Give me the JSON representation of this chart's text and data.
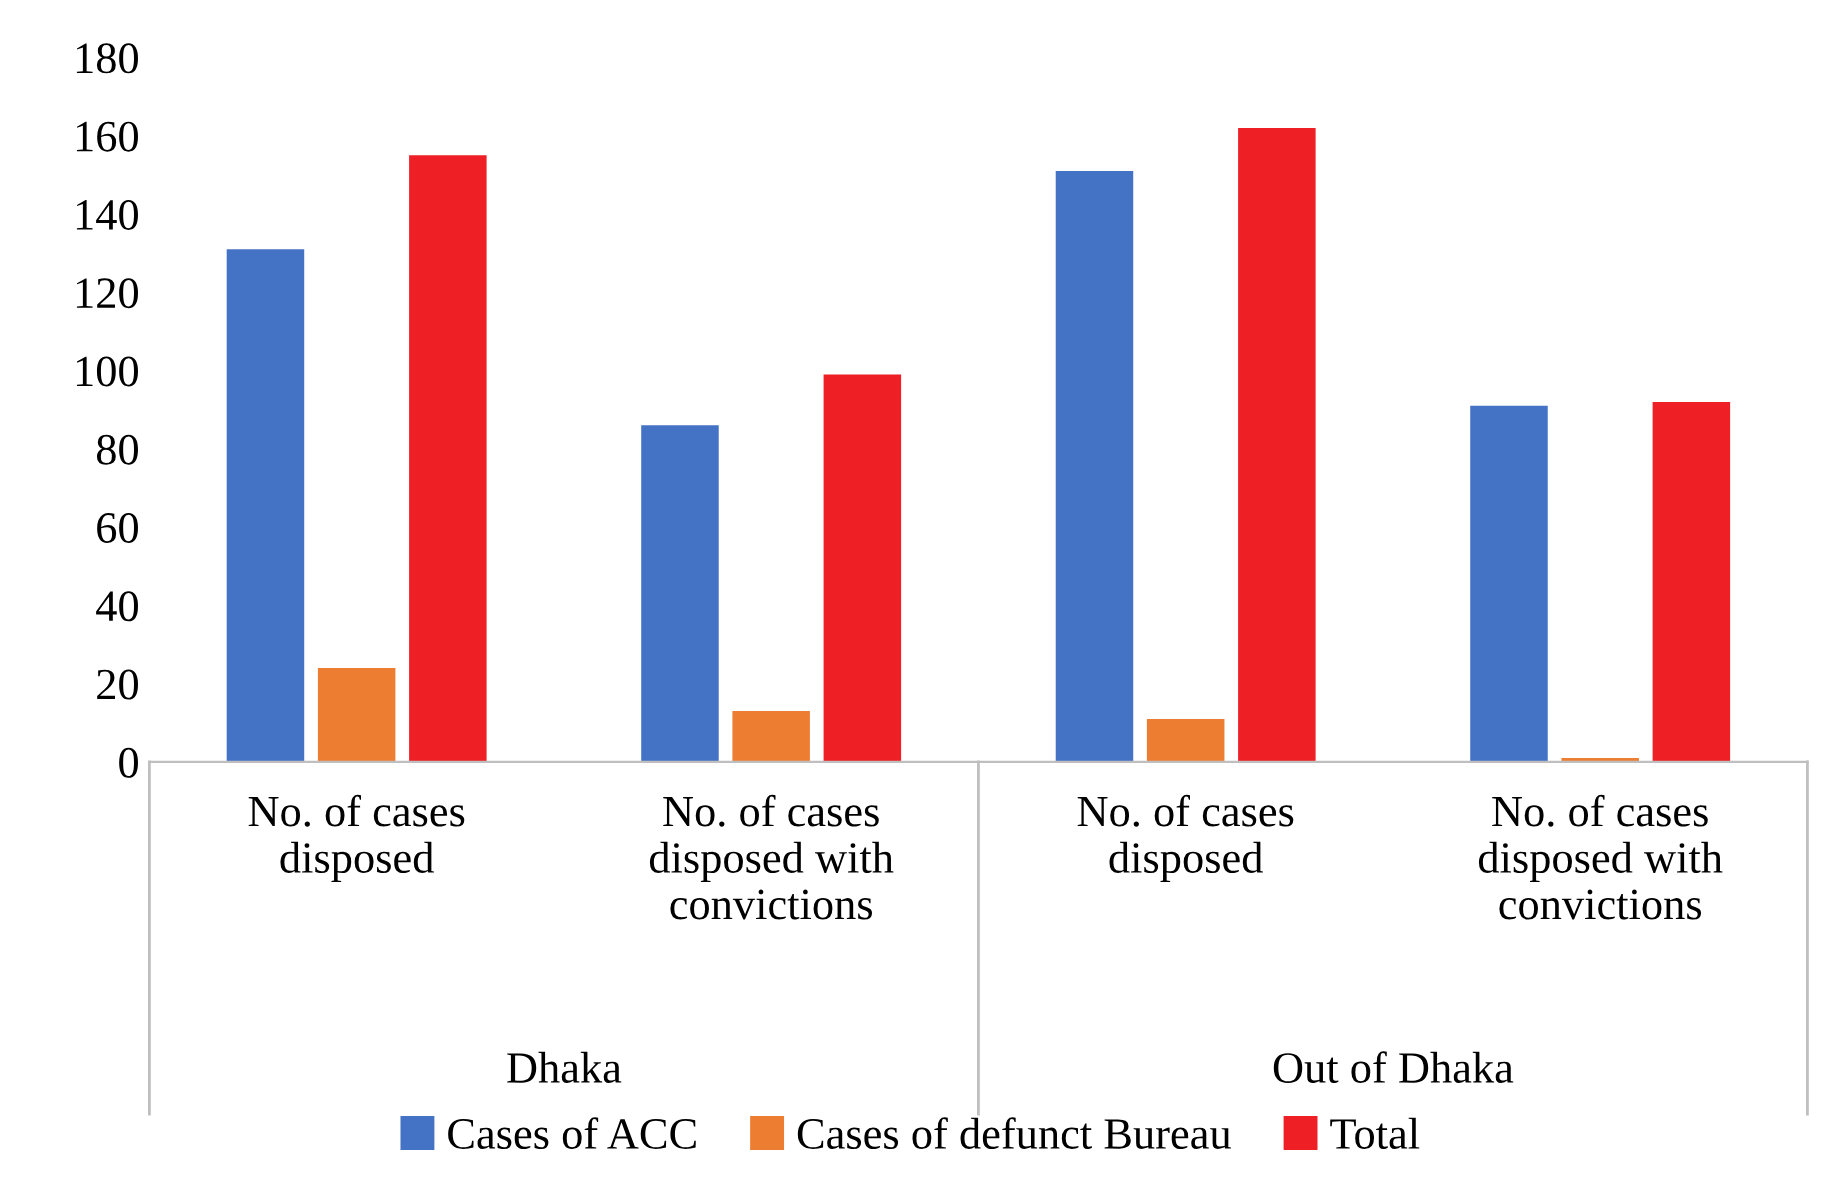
{
  "chart_data": {
    "type": "bar",
    "categories": [
      "No. of cases\ndisposed",
      "No. of cases\ndisposed with\nconvictions",
      "No. of cases\ndisposed",
      "No. of cases\ndisposed with\nconvictions"
    ],
    "annotations": [
      "Dhaka",
      "Out of Dhaka"
    ],
    "series": [
      {
        "name": "Cases of ACC",
        "color": "#4472c4",
        "values": [
          131,
          86,
          151,
          91
        ]
      },
      {
        "name": "Cases of defunct Bureau",
        "color": "#ed7d31",
        "values": [
          24,
          13,
          11,
          1
        ]
      },
      {
        "name": "Total",
        "color": "#ee1f25",
        "values": [
          155,
          99,
          162,
          92
        ]
      }
    ],
    "ylim": [
      0,
      180
    ],
    "yticks": [
      0,
      20,
      40,
      60,
      80,
      100,
      120,
      140,
      160,
      180
    ],
    "grid": false,
    "legend": "bottom"
  }
}
